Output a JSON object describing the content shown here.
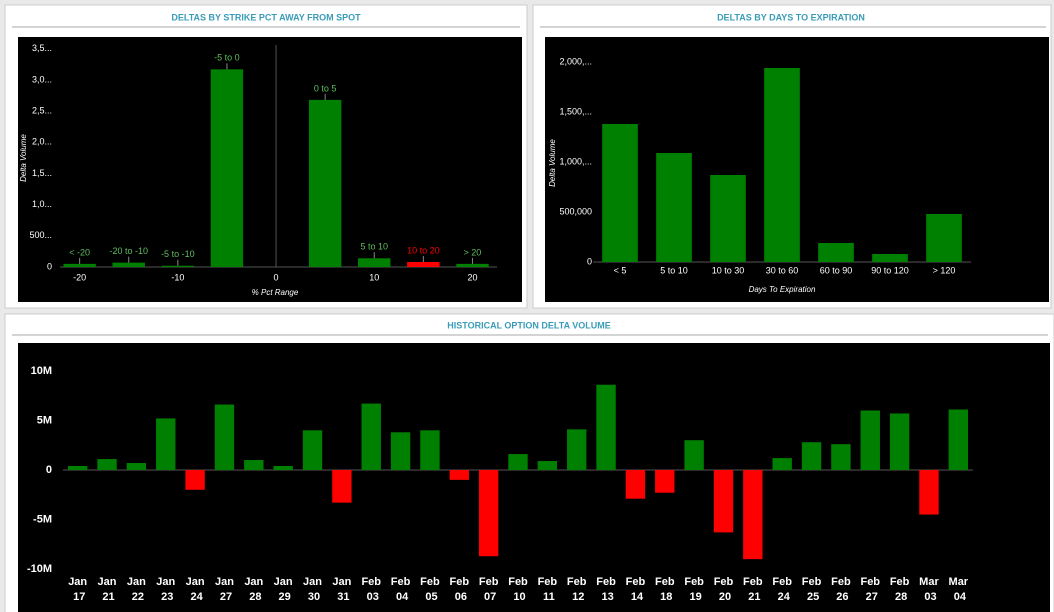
{
  "chart_data": [
    {
      "type": "bar",
      "title": "DELTAS BY STRIKE PCT AWAY FROM SPOT",
      "y_label": "Delta Volume",
      "x_label": "% Pct Range",
      "categories": [
        "< -20",
        "-20 to -10",
        "-5 to -10",
        "-5 to 0",
        "0 to 5",
        "5 to 10",
        "10 to 20",
        "> 20"
      ],
      "category_label_position": "top",
      "x": [
        -20,
        -15,
        -10,
        -5,
        5,
        10,
        15,
        20
      ],
      "values": [
        50000,
        70000,
        20000,
        3170000,
        2680000,
        140000,
        80000,
        50000
      ],
      "colors": [
        "#008000",
        "#008000",
        "#008000",
        "#008000",
        "#008000",
        "#008000",
        "#ff0000",
        "#008000"
      ],
      "xlim": [
        -22,
        22.5
      ],
      "xticks": [
        -20,
        -10,
        0,
        10,
        20
      ],
      "ylim": [
        0,
        3560000
      ],
      "yticks": [
        0,
        {
          "value": 500000,
          "label": "500..."
        },
        {
          "value": 1000000,
          "label": "1,0..."
        },
        {
          "value": 1500000,
          "label": "1,5..."
        },
        {
          "value": 2000000,
          "label": "2,0..."
        },
        {
          "value": 2500000,
          "label": "2,5..."
        },
        {
          "value": 3000000,
          "label": "3,0..."
        },
        {
          "value": 3500000,
          "label": "3,5..."
        }
      ]
    },
    {
      "type": "bar",
      "title": "DELTAS BY DAYS TO EXPIRATION",
      "y_label": "Delta Volume",
      "x_label": "Days To Expiration",
      "categories": [
        "< 5",
        "5 to 10",
        "10 to 30",
        "30 to 60",
        "60 to 90",
        "90 to 120",
        "> 120"
      ],
      "category_label_position": "bottom",
      "values": [
        1380000,
        1090000,
        870000,
        1940000,
        190000,
        80000,
        480000
      ],
      "color": "#008000",
      "ylim": [
        0,
        2120000
      ],
      "yticks": [
        0,
        {
          "value": 500000,
          "label": "500,000"
        },
        {
          "value": 1000000,
          "label": "1,000,..."
        },
        {
          "value": 1500000,
          "label": "1,500,..."
        },
        {
          "value": 2000000,
          "label": "2,000,..."
        }
      ]
    },
    {
      "type": "bar",
      "title": "HISTORICAL OPTION DELTA VOLUME",
      "categories": [
        "Jan 17",
        "Jan 21",
        "Jan 22",
        "Jan 23",
        "Jan 24",
        "Jan 27",
        "Jan 28",
        "Jan 29",
        "Jan 30",
        "Jan 31",
        "Feb 03",
        "Feb 04",
        "Feb 05",
        "Feb 06",
        "Feb 07",
        "Feb 10",
        "Feb 11",
        "Feb 12",
        "Feb 13",
        "Feb 14",
        "Feb 18",
        "Feb 19",
        "Feb 20",
        "Feb 21",
        "Feb 24",
        "Feb 25",
        "Feb 26",
        "Feb 27",
        "Feb 28",
        "Mar 03",
        "Mar 04"
      ],
      "category_label_position": "bottom",
      "values": [
        400000,
        1100000,
        700000,
        5200000,
        -2000000,
        6600000,
        1000000,
        400000,
        4000000,
        -3300000,
        6700000,
        3800000,
        4000000,
        -1000000,
        -8700000,
        1600000,
        900000,
        4100000,
        8600000,
        -2900000,
        -2300000,
        3000000,
        -6300000,
        -9000000,
        1200000,
        2800000,
        2600000,
        6000000,
        5700000,
        -4500000,
        6100000
      ],
      "color": "#008000",
      "negative_color": "#ff0000",
      "ylim": [
        -10600000,
        11600000
      ],
      "yticks": [
        {
          "value": -10000000,
          "label": "-10M"
        },
        {
          "value": -5000000,
          "label": "-5M"
        },
        0,
        {
          "value": 5000000,
          "label": "5M"
        },
        {
          "value": 10000000,
          "label": "10M"
        }
      ]
    }
  ]
}
